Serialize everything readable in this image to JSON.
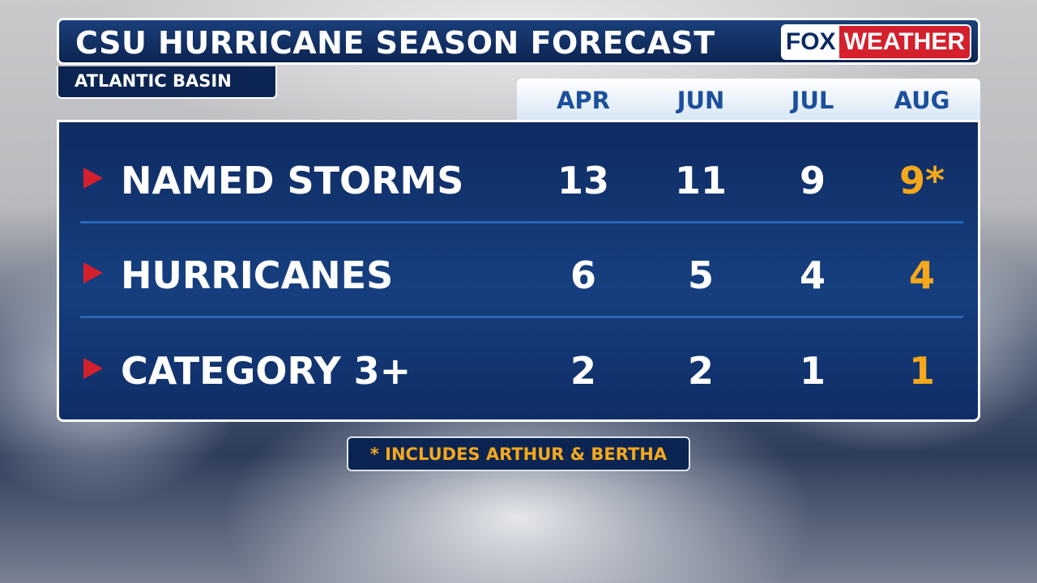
{
  "header": {
    "title": "CSU HURRICANE SEASON FORECAST",
    "subtitle": "ATLANTIC BASIN",
    "logo": [
      "FOX",
      "WEATHER"
    ]
  },
  "table": {
    "columns": [
      "APR",
      "JUN",
      "JUL",
      "AUG"
    ],
    "rows": [
      {
        "label": "NAMED STORMS",
        "values": [
          "13",
          "11",
          "9",
          "9*"
        ]
      },
      {
        "label": "HURRICANES",
        "values": [
          "6",
          "5",
          "4",
          "4"
        ]
      },
      {
        "label": "CATEGORY 3+",
        "values": [
          "2",
          "2",
          "1",
          "1"
        ]
      }
    ]
  },
  "footnote": "* INCLUDES ARTHUR & BERTHA"
}
